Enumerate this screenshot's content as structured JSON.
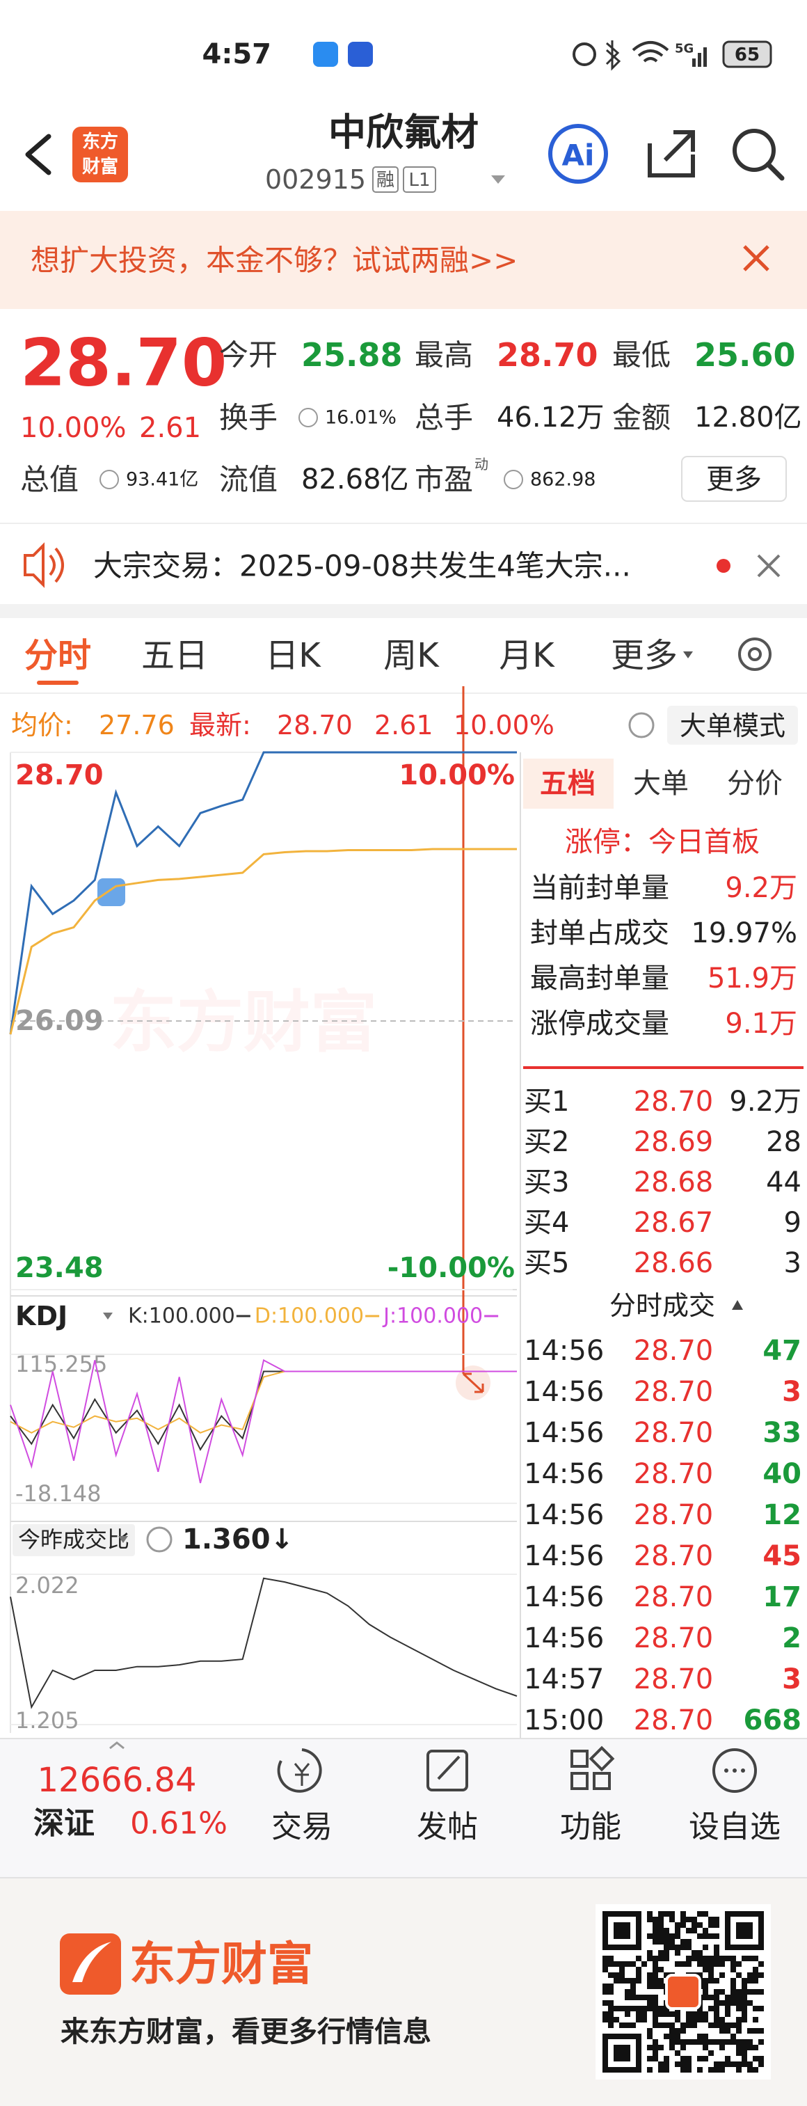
{
  "status_bar": {
    "time": "4:57",
    "network": "5G",
    "battery": "65"
  },
  "header": {
    "logo_line1": "东方",
    "logo_line2": "财富",
    "name": "中欣氟材",
    "code": "002915",
    "badge_margin": "融",
    "badge_level": "L1",
    "ai": "Ai"
  },
  "banner": {
    "text": "想扩大投资，本金不够？试试两融>>"
  },
  "quote": {
    "price": "28.70",
    "change_pct": "10.00%",
    "change": "2.61",
    "fields": [
      {
        "label": "今开",
        "value": "25.88",
        "color": "#1a9a3a"
      },
      {
        "label": "最高",
        "value": "28.70",
        "color": "#e8312f"
      },
      {
        "label": "最低",
        "value": "25.60",
        "color": "#1a9a3a"
      },
      {
        "label": "换手",
        "value": "16.01%",
        "icon": true
      },
      {
        "label": "总手",
        "value": "46.12万"
      },
      {
        "label": "金额",
        "value": "12.80亿"
      },
      {
        "label": "总值",
        "value": "93.41亿",
        "icon": true
      },
      {
        "label": "流值",
        "value": "82.68亿"
      },
      {
        "label": "市盈",
        "sup": "动",
        "value": "862.98",
        "icon": true
      }
    ],
    "more": "更多"
  },
  "notice": {
    "text": "大宗交易：2025-09-08共发生4笔大宗..."
  },
  "tabs": {
    "items": [
      "分时",
      "五日",
      "日K",
      "周K",
      "月K",
      "更多"
    ],
    "active": 0
  },
  "info_bar": {
    "avg_label": "均价:",
    "avg": "27.76",
    "latest_label": "最新:",
    "latest": "28.70",
    "change": "2.61",
    "change_pct": "10.00%",
    "mode": "大单模式"
  },
  "chart_data": [
    {
      "type": "line",
      "watermark": "东方财富",
      "ylim": [
        23.48,
        28.7
      ],
      "yticks": [
        {
          "value": 28.7,
          "label": "28.70"
        },
        26.09,
        23.48
      ],
      "y2lim": [
        -10,
        10
      ],
      "y2ticks": [
        {
          "value": 10,
          "label": "10.00%"
        },
        {
          "value": -10,
          "label": "-10.00%"
        }
      ],
      "series": [
        {
          "color": "#2f6db5",
          "values": [
            25.96,
            27.4,
            27.13,
            27.26,
            27.46,
            28.31,
            27.79,
            27.98,
            27.79,
            28.11,
            28.18,
            28.24,
            28.7,
            28.7,
            28.7,
            28.7,
            28.7,
            28.7,
            28.7,
            28.7,
            28.7,
            28.7,
            28.7,
            28.7,
            28.7
          ]
        },
        {
          "color": "#f2b33d",
          "values": [
            25.96,
            26.81,
            26.94,
            27.0,
            27.26,
            27.4,
            27.43,
            27.46,
            27.47,
            27.49,
            27.51,
            27.53,
            27.71,
            27.73,
            27.74,
            27.74,
            27.75,
            27.75,
            27.75,
            27.75,
            27.76,
            27.76,
            27.76,
            27.76,
            27.76
          ]
        }
      ]
    },
    {
      "type": "line",
      "indicator": "KDJ",
      "ylim": [
        -18.148,
        115.255
      ],
      "yticks": [
        115.255,
        -18.148
      ],
      "series": [
        {
          "label": "K:100.000",
          "color": "#333333",
          "values": [
            60,
            35,
            70,
            40,
            75,
            45,
            65,
            35,
            70,
            30,
            60,
            40,
            100,
            100,
            100,
            100,
            100,
            100,
            100,
            100,
            100,
            100,
            100,
            100,
            100
          ]
        },
        {
          "label": "D:100.000",
          "color": "#f2b33d",
          "values": [
            55,
            45,
            55,
            50,
            60,
            55,
            58,
            48,
            58,
            45,
            52,
            48,
            95,
            100,
            100,
            100,
            100,
            100,
            100,
            100,
            100,
            100,
            100,
            100,
            100
          ]
        },
        {
          "label": "J:100.000",
          "color": "#d04ce0",
          "values": [
            70,
            15,
            100,
            20,
            110,
            25,
            80,
            10,
            95,
            0,
            75,
            25,
            110,
            100,
            100,
            100,
            100,
            100,
            100,
            100,
            100,
            100,
            100,
            100,
            100
          ]
        }
      ]
    },
    {
      "type": "line",
      "title": "今昨成交比",
      "current": "1.360↓",
      "ylim": [
        1.205,
        2.022
      ],
      "yticks": [
        2.022,
        1.205
      ],
      "series": [
        {
          "color": "#333333",
          "values": [
            1.9,
            1.3,
            1.5,
            1.45,
            1.5,
            1.5,
            1.52,
            1.52,
            1.53,
            1.55,
            1.55,
            1.56,
            2.0,
            1.98,
            1.95,
            1.92,
            1.85,
            1.75,
            1.68,
            1.62,
            1.56,
            1.5,
            1.45,
            1.4,
            1.36
          ]
        }
      ]
    }
  ],
  "right_panel": {
    "tabs": [
      "五档",
      "大单",
      "分价"
    ],
    "active": 0,
    "limit_status": "涨停：今日首板",
    "limit_rows": [
      {
        "label": "当前封单量",
        "value": "9.2万"
      },
      {
        "label": "封单占成交",
        "value": "19.97%"
      },
      {
        "label": "最高封单量",
        "value": "51.9万"
      },
      {
        "label": "涨停成交量",
        "value": "9.1万"
      }
    ],
    "order_book": [
      {
        "label": "买1",
        "price": "28.70",
        "volume": "9.2万"
      },
      {
        "label": "买2",
        "price": "28.69",
        "volume": "28"
      },
      {
        "label": "买3",
        "price": "28.68",
        "volume": "44"
      },
      {
        "label": "买4",
        "price": "28.67",
        "volume": "9"
      },
      {
        "label": "买5",
        "price": "28.66",
        "volume": "3"
      }
    ],
    "trades_title": "分时成交",
    "trades": [
      {
        "time": "14:56",
        "price": "28.70",
        "volume": "47",
        "color": "#1a9a3a"
      },
      {
        "time": "14:56",
        "price": "28.70",
        "volume": "3",
        "color": "#e8312f"
      },
      {
        "time": "14:56",
        "price": "28.70",
        "volume": "33",
        "color": "#1a9a3a"
      },
      {
        "time": "14:56",
        "price": "28.70",
        "volume": "40",
        "color": "#1a9a3a"
      },
      {
        "time": "14:56",
        "price": "28.70",
        "volume": "12",
        "color": "#1a9a3a"
      },
      {
        "time": "14:56",
        "price": "28.70",
        "volume": "45",
        "color": "#e8312f"
      },
      {
        "time": "14:56",
        "price": "28.70",
        "volume": "17",
        "color": "#1a9a3a"
      },
      {
        "time": "14:56",
        "price": "28.70",
        "volume": "2",
        "color": "#1a9a3a"
      },
      {
        "time": "14:57",
        "price": "28.70",
        "volume": "3",
        "color": "#e8312f"
      },
      {
        "time": "15:00",
        "price": "28.70",
        "volume": "668",
        "color": "#1a9a3a"
      }
    ]
  },
  "bottom_bar": {
    "index_value": "12666.84",
    "index_name": "深证",
    "index_change": "0.61%",
    "items": [
      "交易",
      "发帖",
      "功能",
      "设自选"
    ]
  },
  "footer": {
    "brand": "东方财富",
    "slogan": "来东方财富，看更多行情信息"
  }
}
